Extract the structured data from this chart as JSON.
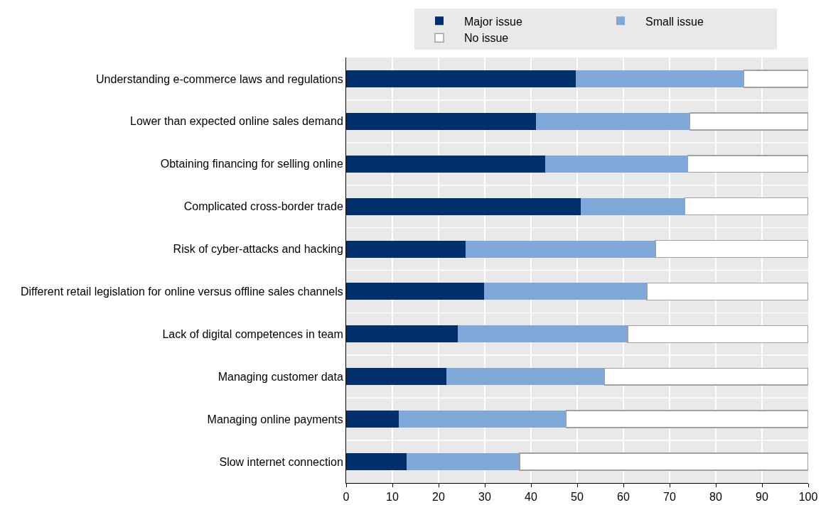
{
  "chart_data": {
    "type": "bar",
    "orientation": "horizontal",
    "stacked": true,
    "categories": [
      "Understanding e-commerce laws and regulations",
      "Lower than expected online sales demand",
      "Obtaining financing for selling online",
      "Complicated cross-border trade",
      "Risk of cyber-attacks and hacking",
      "Different retail legislation for online versus offline sales channels",
      "Lack of digital competences in team",
      "Managing customer data",
      "Managing online payments",
      "Slow internet connection"
    ],
    "series": [
      {
        "name": "Major issue",
        "color": "#002f6c",
        "values": [
          49.7,
          41.0,
          43.0,
          50.7,
          25.8,
          29.9,
          24.1,
          21.7,
          11.4,
          13.1
        ]
      },
      {
        "name": "Small issue",
        "color": "#7fa8d9",
        "values": [
          36.4,
          33.4,
          30.9,
          22.6,
          41.1,
          35.2,
          36.8,
          34.2,
          36.2,
          24.4
        ]
      },
      {
        "name": "No issue",
        "color": "#ffffff",
        "values": [
          13.9,
          25.6,
          26.1,
          26.7,
          33.1,
          34.9,
          39.1,
          44.1,
          52.4,
          62.5
        ]
      }
    ],
    "xlim": [
      0,
      100
    ],
    "xticks": [
      0,
      10,
      20,
      30,
      40,
      50,
      60,
      70,
      80,
      90,
      100
    ],
    "grid": true,
    "legend": "top"
  }
}
